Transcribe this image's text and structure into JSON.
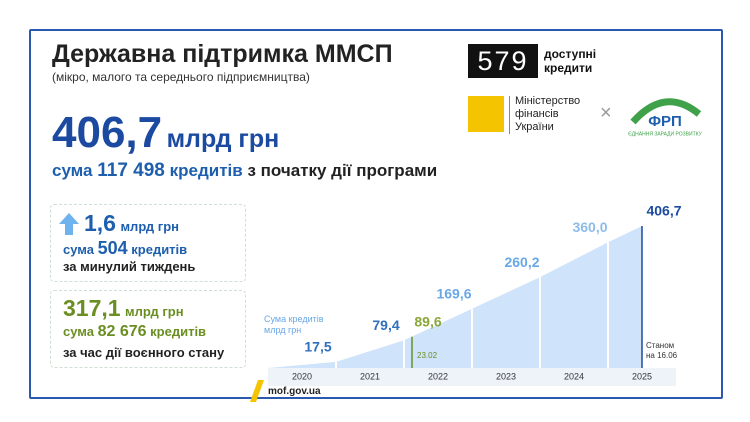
{
  "header": {
    "title": "Державна підтримка ММСП",
    "subtitle": "(мікро, малого та середнього підприємництва)"
  },
  "logos": {
    "program_number": "579",
    "program_name": "доступні кредити",
    "ministry": "Міністерство фінансів України",
    "fund": "ФРП",
    "fund_motto": "ЄДНАННЯ ЗАРАДИ РОЗВИТКУ"
  },
  "total": {
    "amount": "406,7",
    "unit": "млрд грн",
    "sum_word": "сума",
    "count": "117 498",
    "count_word": "кредитів",
    "period": "з початку дії програми"
  },
  "week": {
    "amount": "1,6",
    "unit": "млрд грн",
    "sum_word": "сума",
    "count": "504",
    "count_word": "кредитів",
    "period": "за минулий тиждень"
  },
  "war": {
    "amount": "317,1",
    "unit": "млрд грн",
    "sum_word": "сума",
    "count": "82 676",
    "count_word": "кредитів",
    "period": "за час дії воєнного стану"
  },
  "chart_data": {
    "type": "area",
    "y_label": "Сума кредитів млрд грн",
    "categories": [
      "2020",
      "2021",
      "2022",
      "2023",
      "2024",
      "2025"
    ],
    "values": [
      17.5,
      79.4,
      169.6,
      260.2,
      360.0,
      406.7
    ],
    "value_labels": [
      "17,5",
      "79,4",
      "169,6",
      "260,2",
      "360,0",
      "406,7"
    ],
    "color": "#cfe3fa",
    "annotations": [
      {
        "text": "23.02",
        "value": 89.6,
        "value_label": "89,6"
      },
      {
        "text": "Станом на 16.06"
      }
    ]
  },
  "footer": {
    "site": "mof.gov.ua"
  }
}
